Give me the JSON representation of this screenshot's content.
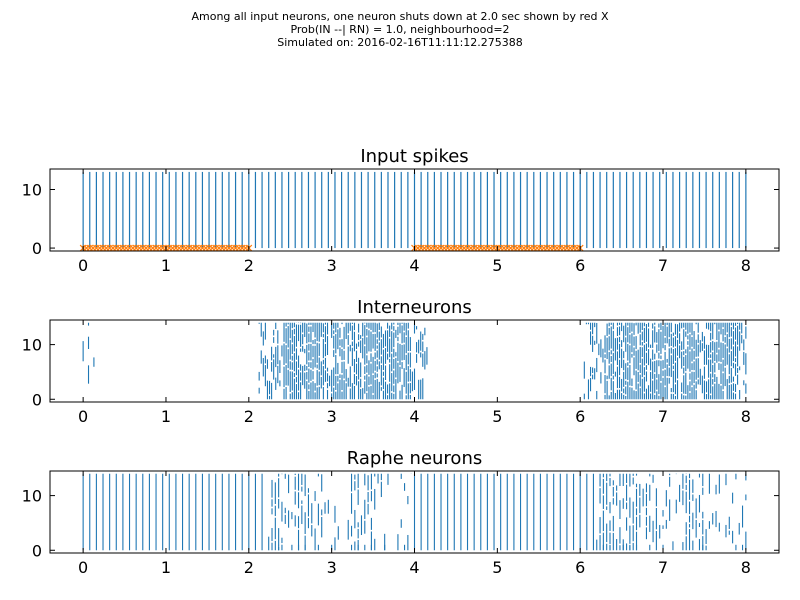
{
  "suptitle": {
    "line1": "Among all input neurons, one neuron shuts down at 2.0 sec shown by red X",
    "line2": "Prob(IN --| RN) = 1.0, neighbourhood=2",
    "line3": "Simulated on: 2016-02-16T11:11:12.275388"
  },
  "colors": {
    "spike": "#1f77b4",
    "marker": "#ff7f0e",
    "axis": "#000000"
  },
  "chart_data": [
    {
      "type": "scatter",
      "title": "Input spikes",
      "xlim": [
        -0.4,
        8.4
      ],
      "ylim": [
        -0.5,
        13.5
      ],
      "xticks": [
        0,
        1,
        2,
        3,
        4,
        5,
        6,
        7,
        8
      ],
      "yticks": [
        0,
        10
      ],
      "series": [
        {
          "kind": "spike_columns",
          "x_start": 0.0,
          "x_end": 8.0,
          "step": 0.08,
          "y_range": [
            0,
            13
          ]
        },
        {
          "kind": "markers",
          "marker": "x",
          "y": 0,
          "segments": [
            [
              0.0,
              2.0
            ],
            [
              4.0,
              6.0
            ]
          ],
          "step": 0.04
        }
      ]
    },
    {
      "type": "scatter",
      "title": "Interneurons",
      "xlim": [
        -0.4,
        8.4
      ],
      "ylim": [
        -0.5,
        14.5
      ],
      "xticks": [
        0,
        1,
        2,
        3,
        4,
        5,
        6,
        7,
        8
      ],
      "yticks": [
        0,
        10
      ],
      "series": [
        {
          "kind": "spike_events",
          "active_windows": [
            [
              0.0,
              0.15
            ],
            [
              2.1,
              4.15
            ],
            [
              6.05,
              8.0
            ]
          ],
          "dense_windows": [
            [
              2.35,
              3.0
            ],
            [
              2.95,
              3.55
            ],
            [
              3.45,
              4.0
            ],
            [
              6.3,
              7.0
            ],
            [
              6.85,
              7.5
            ],
            [
              7.45,
              8.0
            ]
          ],
          "y_range": [
            0,
            14
          ]
        }
      ]
    },
    {
      "type": "scatter",
      "title": "Raphe neurons",
      "xlim": [
        -0.4,
        8.4
      ],
      "ylim": [
        -0.5,
        14.5
      ],
      "xticks": [
        0,
        1,
        2,
        3,
        4,
        5,
        6,
        7,
        8
      ],
      "yticks": [
        0,
        10
      ],
      "series": [
        {
          "kind": "spike_events",
          "full_windows": [
            [
              0.0,
              2.2
            ],
            [
              4.0,
              6.2
            ]
          ],
          "sparse_windows": [
            [
              2.2,
              4.0
            ],
            [
              6.2,
              8.0
            ]
          ],
          "y_range": [
            0,
            14
          ]
        }
      ]
    }
  ]
}
